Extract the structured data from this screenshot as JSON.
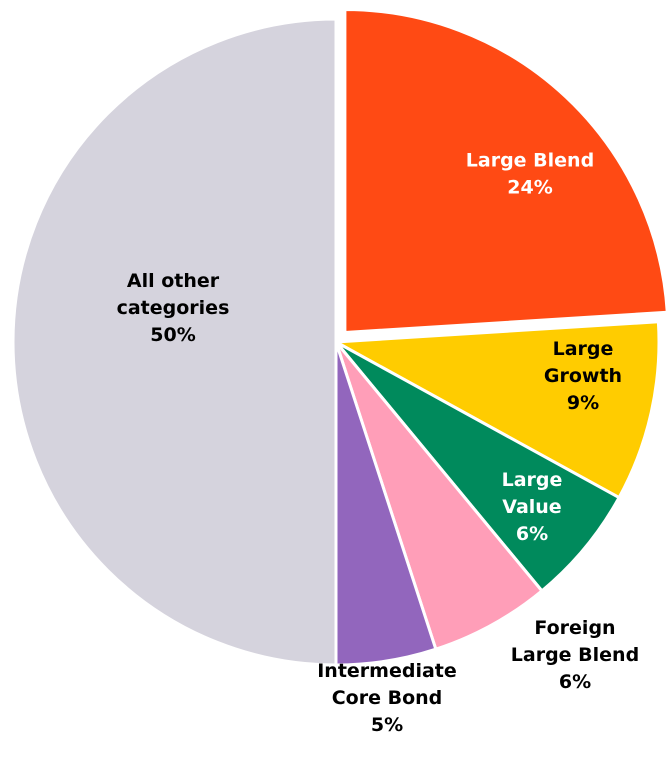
{
  "chart_data": {
    "type": "pie",
    "title": "",
    "slices": [
      {
        "label_lines": [
          "Large Blend"
        ],
        "pct_text": "24%",
        "value": 24,
        "color": "#ff4a14",
        "label_color": "#ffffff"
      },
      {
        "label_lines": [
          "Large",
          "Growth"
        ],
        "pct_text": "9%",
        "value": 9,
        "color": "#ffcc00",
        "label_color": "#000000"
      },
      {
        "label_lines": [
          "Large",
          "Value"
        ],
        "pct_text": "6%",
        "value": 6,
        "color": "#008a5c",
        "label_color": "#ffffff"
      },
      {
        "label_lines": [
          "Foreign",
          "Large Blend"
        ],
        "pct_text": "6%",
        "value": 6,
        "color": "#ff9eb8",
        "label_color": "#000000"
      },
      {
        "label_lines": [
          "Intermediate",
          "Core Bond"
        ],
        "pct_text": "5%",
        "value": 5,
        "color": "#9266bd",
        "label_color": "#000000"
      },
      {
        "label_lines": [
          "All other",
          "categories"
        ],
        "pct_text": "50%",
        "value": 50,
        "color": "#d5d3dd",
        "label_color": "#000000"
      }
    ]
  }
}
